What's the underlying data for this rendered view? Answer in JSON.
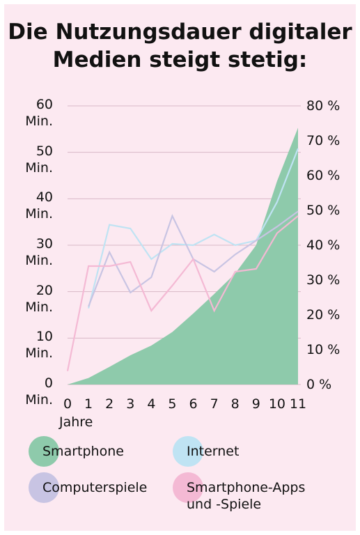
{
  "chart_data": {
    "type": "area-line",
    "title": "Die Nutzungsdauer digitaler Medien steigt stetig:",
    "x": [
      0,
      1,
      2,
      3,
      4,
      5,
      6,
      7,
      8,
      9,
      10,
      11
    ],
    "xlim": [
      0,
      11
    ],
    "xlabel": "Jahre",
    "ylim": [
      0,
      60
    ],
    "yticks": [
      {
        "value": 0,
        "label": "0\nMin."
      },
      {
        "value": 10,
        "label": "10\nMin."
      },
      {
        "value": 20,
        "label": "20\nMin."
      },
      {
        "value": 30,
        "label": "30\nMin."
      },
      {
        "value": 40,
        "label": "40\nMin."
      },
      {
        "value": 50,
        "label": "50\nMin."
      },
      {
        "value": 60,
        "label": "60\nMin."
      }
    ],
    "y2lim": [
      0,
      80
    ],
    "y2ticks": [
      {
        "value": 0,
        "label": "0 %"
      },
      {
        "value": 10,
        "label": "10 %"
      },
      {
        "value": 20,
        "label": "20 %"
      },
      {
        "value": 30,
        "label": "30 %"
      },
      {
        "value": 40,
        "label": "40 %"
      },
      {
        "value": 50,
        "label": "50 %"
      },
      {
        "value": 60,
        "label": "60 %"
      },
      {
        "value": 70,
        "label": "70 %"
      },
      {
        "value": 80,
        "label": "80 %"
      }
    ],
    "grid": true,
    "series": [
      {
        "name": "Smartphone",
        "color": "#8ecaab",
        "kind": "area",
        "values": [
          0,
          1.4,
          3.8,
          6.3,
          8.4,
          11.3,
          15.3,
          19.5,
          23.9,
          30,
          43.8,
          55.3
        ]
      },
      {
        "name": "Internet",
        "color": "#bfe3f3",
        "kind": "line",
        "values": [
          null,
          16.4,
          34.4,
          33.6,
          27,
          30.3,
          30,
          32.3,
          30,
          31,
          39.3,
          50.8
        ]
      },
      {
        "name": "Computerspiele",
        "color": "#c8c4e3",
        "kind": "line",
        "values": [
          null,
          16.8,
          28.5,
          19.8,
          23.1,
          36.3,
          27,
          24.3,
          28,
          31,
          34,
          37.3
        ]
      },
      {
        "name": "Smartphone-Apps und -Spiele",
        "color": "#f4b9d4",
        "kind": "line",
        "values": [
          2.9,
          25.5,
          25.5,
          26.4,
          15.9,
          21.3,
          27,
          15.9,
          24.3,
          24.9,
          32.6,
          36.3
        ]
      }
    ]
  }
}
